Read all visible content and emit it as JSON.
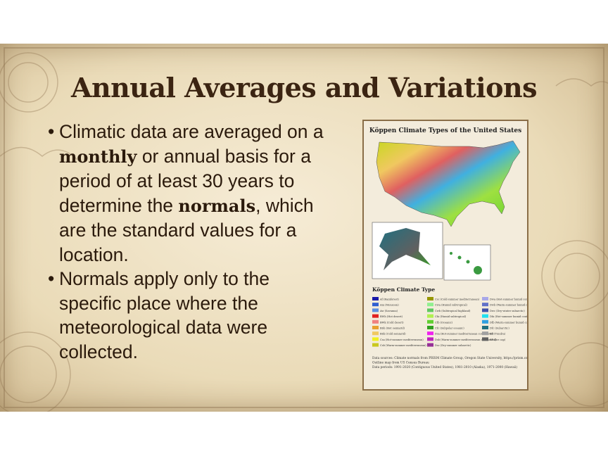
{
  "slide": {
    "title": "Annual Averages and Variations",
    "bullets": [
      {
        "segments": [
          {
            "text": "Climatic data are averaged on a ",
            "bold": false
          },
          {
            "text": "monthly",
            "bold": true
          },
          {
            "text": " or annual basis for a period of at least 30 years to determine the ",
            "bold": false
          },
          {
            "text": "normals",
            "bold": true
          },
          {
            "text": ", which are the standard values for a location.",
            "bold": false
          }
        ]
      },
      {
        "segments": [
          {
            "text": "Normals apply only to the specific place where the meteorological data were collected.",
            "bold": false
          }
        ]
      }
    ],
    "map": {
      "title": "Köppen Climate Types of the United States",
      "legend_title": "Köppen Climate Type",
      "legend": [
        {
          "label": "Af (Rainforest)",
          "color": "#1a1aa8"
        },
        {
          "label": "Am (Monsoon)",
          "color": "#2f5fd0"
        },
        {
          "label": "Aw (Savanna)",
          "color": "#5c8fe0"
        },
        {
          "label": "BWh (Hot desert)",
          "color": "#e02020"
        },
        {
          "label": "BWk (Cold desert)",
          "color": "#f08080"
        },
        {
          "label": "BSh (Hot semiarid)",
          "color": "#e8a030"
        },
        {
          "label": "BSk (Cold semiarid)",
          "color": "#f0c860"
        },
        {
          "label": "Csa (Hot-summer mediterranean)",
          "color": "#f0f020"
        },
        {
          "label": "Csb (Warm-summer mediterranean)",
          "color": "#c8c820"
        },
        {
          "label": "Csc (Cold-summer mediterranean)",
          "color": "#969600"
        },
        {
          "label": "Cwa (Humid subtropical)",
          "color": "#90f090"
        },
        {
          "label": "Cwb (Subtropical highland)",
          "color": "#60c860"
        },
        {
          "label": "Cfa (Humid subtropical)",
          "color": "#b0f050"
        },
        {
          "label": "Cfb (Oceanic)",
          "color": "#60d030"
        },
        {
          "label": "Cfc (Subpolar oceanic)",
          "color": "#30a020"
        },
        {
          "label": "Dsa (Hot-summer mediterranean continental)",
          "color": "#f020f0"
        },
        {
          "label": "Dsb (Warm-summer mediterranean continental)",
          "color": "#c020c0"
        },
        {
          "label": "Dsc (Dry-summer subarctic)",
          "color": "#963096"
        },
        {
          "label": "Dwa (Hot-summer humid continental)",
          "color": "#a8a8e8"
        },
        {
          "label": "Dwb (Warm-summer humid continental)",
          "color": "#6070c8"
        },
        {
          "label": "Dwc (Dry-winter subarctic)",
          "color": "#4050a8"
        },
        {
          "label": "Dfa (Hot-summer humid continental)",
          "color": "#20e0f0"
        },
        {
          "label": "Dfb (Warm-summer humid continental)",
          "color": "#30a0e0"
        },
        {
          "label": "Dfc (Subarctic)",
          "color": "#207080"
        },
        {
          "label": "ET (Tundra)",
          "color": "#a0a0a0"
        },
        {
          "label": "EF (Ice cap)",
          "color": "#606060"
        }
      ],
      "source_lines": [
        "Data sources: Climate normals from PRISM Climate Group, Oregon State University, https://prism.oregonstate.edu;",
        "Outline map from US Census Bureau",
        "Data periods: 1991-2020 (Contiguous United States), 1981-2010 (Alaska), 1971-2000 (Hawaii)"
      ]
    }
  }
}
